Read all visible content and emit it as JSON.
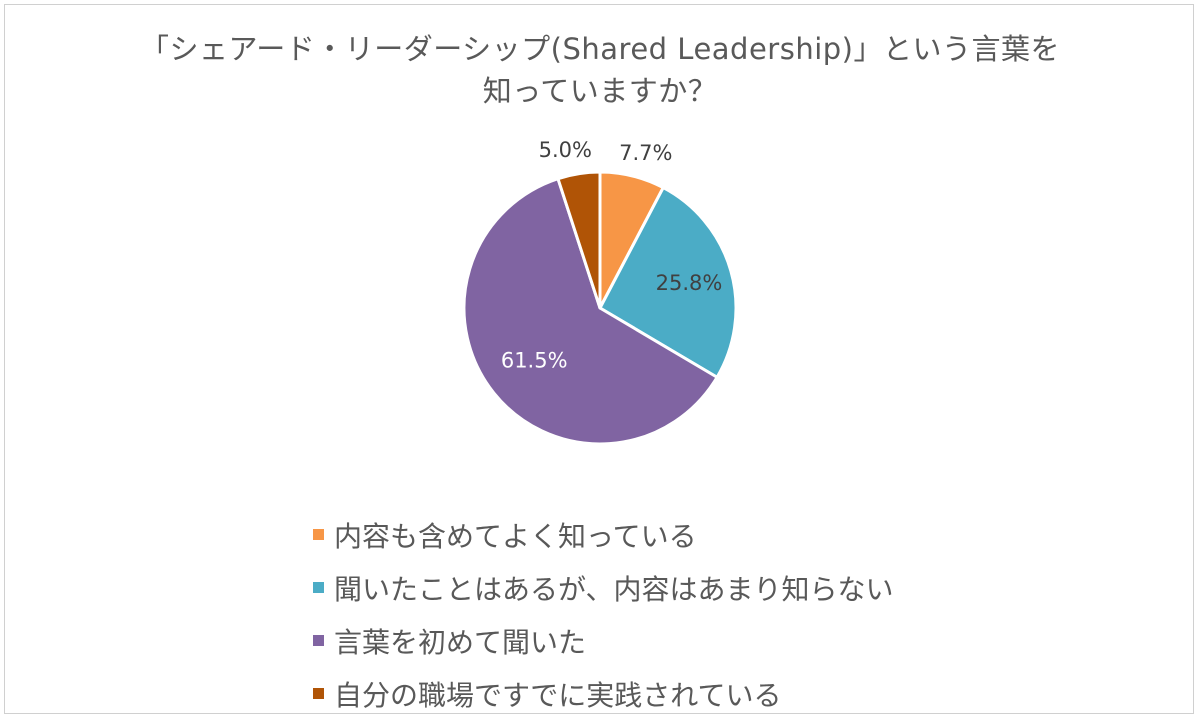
{
  "chart_data": {
    "type": "pie",
    "title_lines": [
      "「シェアード・リーダーシップ(Shared Leadership)」という言葉を",
      "知っていますか？"
    ],
    "slices": [
      {
        "label": "内容も含めてよく知っている",
        "value": 7.7,
        "value_label": "7.7%",
        "color": "#f79646"
      },
      {
        "label": "聞いたことはあるが、内容はあまり知らない",
        "value": 25.8,
        "value_label": "25.8%",
        "color": "#4bacc6"
      },
      {
        "label": "言葉を初めて聞いた",
        "value": 61.5,
        "value_label": "61.5%",
        "color": "#8064a2"
      },
      {
        "label": "自分の職場ですでに実践されている",
        "value": 5.0,
        "value_label": "5.0%",
        "color": "#b05406"
      }
    ],
    "start_angle_deg": 0,
    "direction": "clockwise",
    "legend_position": "bottom"
  }
}
